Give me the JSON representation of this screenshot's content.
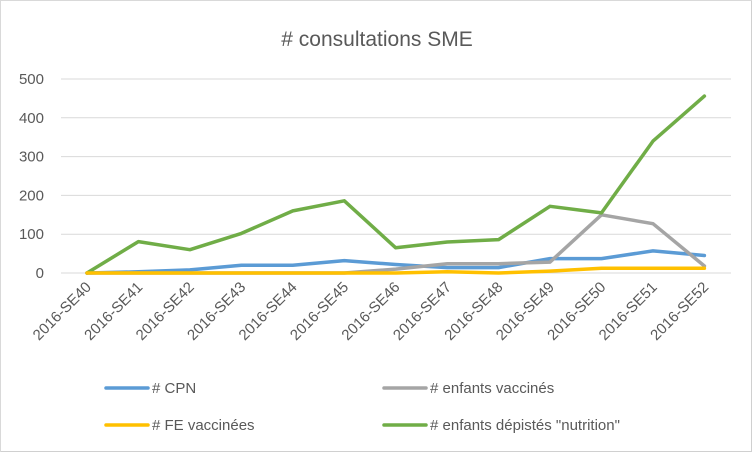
{
  "chart_data": {
    "type": "line",
    "title": "# consultations SME",
    "xlabel": "",
    "ylabel": "",
    "ylim": [
      0,
      500
    ],
    "yticks": [
      "0",
      "100",
      "200",
      "300",
      "400",
      "500"
    ],
    "grid": true,
    "legend_position": "bottom",
    "categories": [
      "2016-SE40",
      "2016-SE41",
      "2016-SE42",
      "2016-SE43",
      "2016-SE44",
      "2016-SE45",
      "2016-SE46",
      "2016-SE47",
      "2016-SE48",
      "2016-SE49",
      "2016-SE50",
      "2016-SE51",
      "2016-SE52"
    ],
    "series": [
      {
        "name": "# CPN",
        "color": "#5b9bd5",
        "values": [
          0,
          3,
          8,
          20,
          20,
          32,
          22,
          14,
          14,
          37,
          37,
          57,
          45
        ]
      },
      {
        "name": "# enfants vaccinés",
        "color": "#a5a5a5",
        "values": [
          0,
          0,
          0,
          0,
          0,
          0,
          10,
          24,
          24,
          28,
          150,
          127,
          18
        ]
      },
      {
        "name": "# FE vaccinées",
        "color": "#ffc000",
        "values": [
          0,
          0,
          0,
          0,
          0,
          0,
          0,
          3,
          0,
          5,
          12,
          12,
          12
        ]
      },
      {
        "name": "# enfants dépistés \"nutrition\"",
        "color": "#70ad47",
        "values": [
          0,
          81,
          60,
          102,
          160,
          186,
          65,
          80,
          86,
          172,
          155,
          340,
          456
        ]
      }
    ]
  }
}
